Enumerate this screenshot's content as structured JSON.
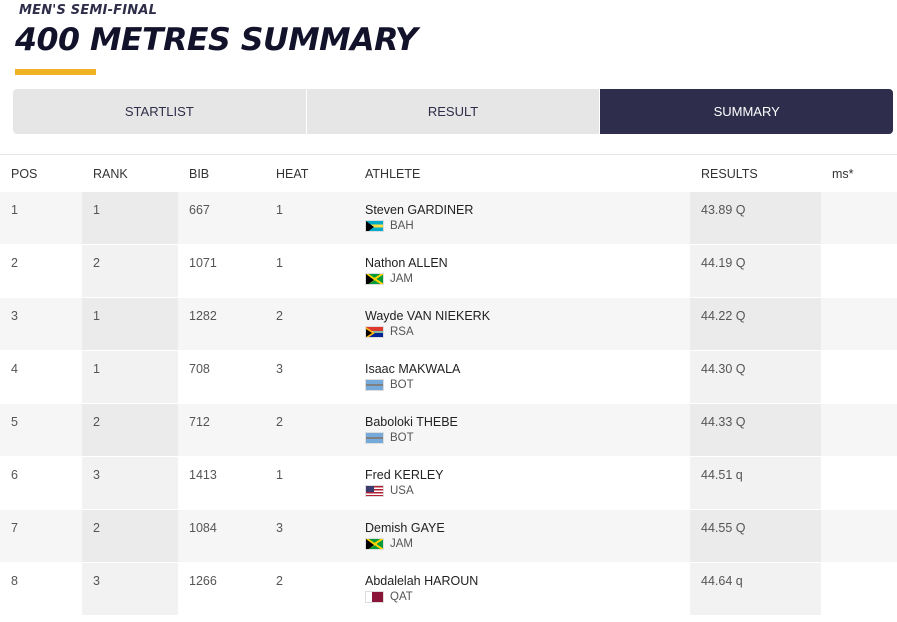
{
  "header": {
    "subtitle": "MEN'S SEMI-FINAL",
    "title": "400 METRES SUMMARY",
    "accent_color": "#f0b323"
  },
  "tabs": [
    {
      "label": "STARTLIST",
      "active": false
    },
    {
      "label": "RESULT",
      "active": false
    },
    {
      "label": "SUMMARY",
      "active": true
    }
  ],
  "table": {
    "columns": {
      "pos": "POS",
      "rank": "RANK",
      "bib": "BIB",
      "heat": "HEAT",
      "athlete": "ATHLETE",
      "results": "RESULTS",
      "ms": "ms*"
    },
    "rows": [
      {
        "pos": "1",
        "rank": "1",
        "bib": "667",
        "heat": "1",
        "name": "Steven GARDINER",
        "country": "BAH",
        "flag": "bah-flag-icon",
        "result": "43.89 Q"
      },
      {
        "pos": "2",
        "rank": "2",
        "bib": "1071",
        "heat": "1",
        "name": "Nathon ALLEN",
        "country": "JAM",
        "flag": "jam-flag-icon",
        "result": "44.19 Q"
      },
      {
        "pos": "3",
        "rank": "1",
        "bib": "1282",
        "heat": "2",
        "name": "Wayde VAN NIEKERK",
        "country": "RSA",
        "flag": "rsa-flag-icon",
        "result": "44.22 Q"
      },
      {
        "pos": "4",
        "rank": "1",
        "bib": "708",
        "heat": "3",
        "name": "Isaac MAKWALA",
        "country": "BOT",
        "flag": "bot-flag-icon",
        "result": "44.30 Q"
      },
      {
        "pos": "5",
        "rank": "2",
        "bib": "712",
        "heat": "2",
        "name": "Baboloki THEBE",
        "country": "BOT",
        "flag": "bot-flag-icon",
        "result": "44.33 Q"
      },
      {
        "pos": "6",
        "rank": "3",
        "bib": "1413",
        "heat": "1",
        "name": "Fred KERLEY",
        "country": "USA",
        "flag": "usa-flag-icon",
        "result": "44.51 q"
      },
      {
        "pos": "7",
        "rank": "2",
        "bib": "1084",
        "heat": "3",
        "name": "Demish GAYE",
        "country": "JAM",
        "flag": "jam-flag-icon",
        "result": "44.55 Q"
      },
      {
        "pos": "8",
        "rank": "3",
        "bib": "1266",
        "heat": "2",
        "name": "Abdalelah HAROUN",
        "country": "QAT",
        "flag": "qat-flag-icon",
        "result": "44.64 q"
      }
    ]
  }
}
